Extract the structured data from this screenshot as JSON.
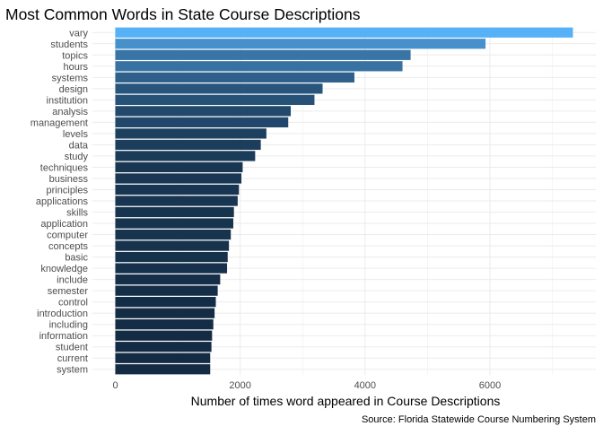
{
  "chart_data": {
    "type": "bar",
    "orientation": "horizontal",
    "title": "Most Common Words in State Course Descriptions",
    "xlabel": "Number of times word appeared in Course Descriptions",
    "ylabel": "",
    "caption": "Source: Florida Statewide Course Numbering System",
    "xlim": [
      0,
      7600
    ],
    "x_ticks": [
      0,
      2000,
      4000,
      6000
    ],
    "x_tick_labels": [
      "0",
      "2000",
      "4000",
      "6000"
    ],
    "grid": true,
    "legend": "none",
    "fill_scale": {
      "low": "#132B43",
      "high": "#56B1F7"
    },
    "categories": [
      "vary",
      "students",
      "topics",
      "hours",
      "systems",
      "design",
      "institution",
      "analysis",
      "management",
      "levels",
      "data",
      "study",
      "techniques",
      "business",
      "principles",
      "applications",
      "skills",
      "application",
      "computer",
      "concepts",
      "basic",
      "knowledge",
      "include",
      "semester",
      "control",
      "introduction",
      "including",
      "information",
      "student",
      "current",
      "system"
    ],
    "values": [
      7330,
      5930,
      4730,
      4600,
      3830,
      3320,
      3190,
      2810,
      2770,
      2420,
      2330,
      2240,
      2040,
      2020,
      1980,
      1960,
      1900,
      1890,
      1850,
      1820,
      1800,
      1790,
      1680,
      1640,
      1610,
      1590,
      1570,
      1550,
      1540,
      1520,
      1520
    ]
  }
}
